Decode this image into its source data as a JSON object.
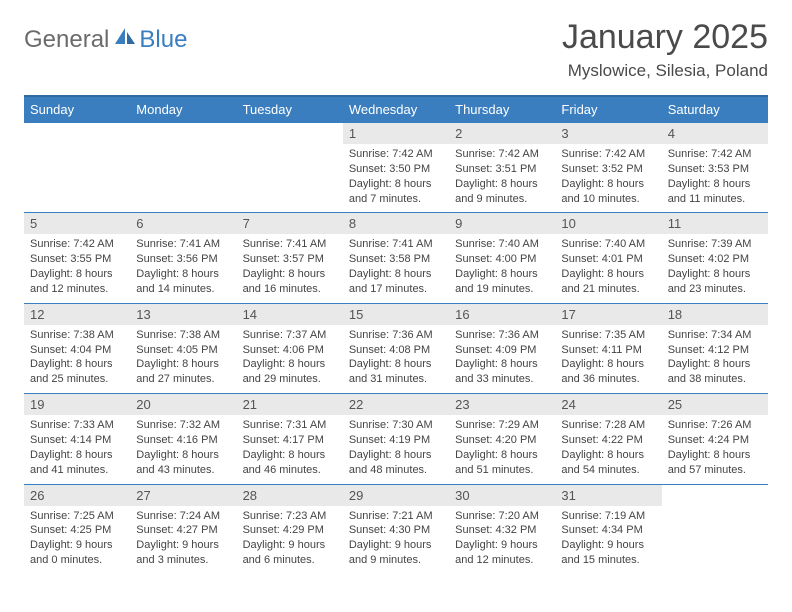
{
  "logo": {
    "general": "General",
    "blue": "Blue"
  },
  "title": "January 2025",
  "location": "Myslowice, Silesia, Poland",
  "colors": {
    "header_bg": "#3a7ebf",
    "header_border": "#2f6aa3",
    "daynum_bg": "#e9e9e9",
    "text": "#444444",
    "title_text": "#4a4a4a"
  },
  "weekdays": [
    "Sunday",
    "Monday",
    "Tuesday",
    "Wednesday",
    "Thursday",
    "Friday",
    "Saturday"
  ],
  "weeks": [
    [
      {
        "n": "",
        "sr": "",
        "ss": "",
        "dl": ""
      },
      {
        "n": "",
        "sr": "",
        "ss": "",
        "dl": ""
      },
      {
        "n": "",
        "sr": "",
        "ss": "",
        "dl": ""
      },
      {
        "n": "1",
        "sr": "Sunrise: 7:42 AM",
        "ss": "Sunset: 3:50 PM",
        "dl": "Daylight: 8 hours and 7 minutes."
      },
      {
        "n": "2",
        "sr": "Sunrise: 7:42 AM",
        "ss": "Sunset: 3:51 PM",
        "dl": "Daylight: 8 hours and 9 minutes."
      },
      {
        "n": "3",
        "sr": "Sunrise: 7:42 AM",
        "ss": "Sunset: 3:52 PM",
        "dl": "Daylight: 8 hours and 10 minutes."
      },
      {
        "n": "4",
        "sr": "Sunrise: 7:42 AM",
        "ss": "Sunset: 3:53 PM",
        "dl": "Daylight: 8 hours and 11 minutes."
      }
    ],
    [
      {
        "n": "5",
        "sr": "Sunrise: 7:42 AM",
        "ss": "Sunset: 3:55 PM",
        "dl": "Daylight: 8 hours and 12 minutes."
      },
      {
        "n": "6",
        "sr": "Sunrise: 7:41 AM",
        "ss": "Sunset: 3:56 PM",
        "dl": "Daylight: 8 hours and 14 minutes."
      },
      {
        "n": "7",
        "sr": "Sunrise: 7:41 AM",
        "ss": "Sunset: 3:57 PM",
        "dl": "Daylight: 8 hours and 16 minutes."
      },
      {
        "n": "8",
        "sr": "Sunrise: 7:41 AM",
        "ss": "Sunset: 3:58 PM",
        "dl": "Daylight: 8 hours and 17 minutes."
      },
      {
        "n": "9",
        "sr": "Sunrise: 7:40 AM",
        "ss": "Sunset: 4:00 PM",
        "dl": "Daylight: 8 hours and 19 minutes."
      },
      {
        "n": "10",
        "sr": "Sunrise: 7:40 AM",
        "ss": "Sunset: 4:01 PM",
        "dl": "Daylight: 8 hours and 21 minutes."
      },
      {
        "n": "11",
        "sr": "Sunrise: 7:39 AM",
        "ss": "Sunset: 4:02 PM",
        "dl": "Daylight: 8 hours and 23 minutes."
      }
    ],
    [
      {
        "n": "12",
        "sr": "Sunrise: 7:38 AM",
        "ss": "Sunset: 4:04 PM",
        "dl": "Daylight: 8 hours and 25 minutes."
      },
      {
        "n": "13",
        "sr": "Sunrise: 7:38 AM",
        "ss": "Sunset: 4:05 PM",
        "dl": "Daylight: 8 hours and 27 minutes."
      },
      {
        "n": "14",
        "sr": "Sunrise: 7:37 AM",
        "ss": "Sunset: 4:06 PM",
        "dl": "Daylight: 8 hours and 29 minutes."
      },
      {
        "n": "15",
        "sr": "Sunrise: 7:36 AM",
        "ss": "Sunset: 4:08 PM",
        "dl": "Daylight: 8 hours and 31 minutes."
      },
      {
        "n": "16",
        "sr": "Sunrise: 7:36 AM",
        "ss": "Sunset: 4:09 PM",
        "dl": "Daylight: 8 hours and 33 minutes."
      },
      {
        "n": "17",
        "sr": "Sunrise: 7:35 AM",
        "ss": "Sunset: 4:11 PM",
        "dl": "Daylight: 8 hours and 36 minutes."
      },
      {
        "n": "18",
        "sr": "Sunrise: 7:34 AM",
        "ss": "Sunset: 4:12 PM",
        "dl": "Daylight: 8 hours and 38 minutes."
      }
    ],
    [
      {
        "n": "19",
        "sr": "Sunrise: 7:33 AM",
        "ss": "Sunset: 4:14 PM",
        "dl": "Daylight: 8 hours and 41 minutes."
      },
      {
        "n": "20",
        "sr": "Sunrise: 7:32 AM",
        "ss": "Sunset: 4:16 PM",
        "dl": "Daylight: 8 hours and 43 minutes."
      },
      {
        "n": "21",
        "sr": "Sunrise: 7:31 AM",
        "ss": "Sunset: 4:17 PM",
        "dl": "Daylight: 8 hours and 46 minutes."
      },
      {
        "n": "22",
        "sr": "Sunrise: 7:30 AM",
        "ss": "Sunset: 4:19 PM",
        "dl": "Daylight: 8 hours and 48 minutes."
      },
      {
        "n": "23",
        "sr": "Sunrise: 7:29 AM",
        "ss": "Sunset: 4:20 PM",
        "dl": "Daylight: 8 hours and 51 minutes."
      },
      {
        "n": "24",
        "sr": "Sunrise: 7:28 AM",
        "ss": "Sunset: 4:22 PM",
        "dl": "Daylight: 8 hours and 54 minutes."
      },
      {
        "n": "25",
        "sr": "Sunrise: 7:26 AM",
        "ss": "Sunset: 4:24 PM",
        "dl": "Daylight: 8 hours and 57 minutes."
      }
    ],
    [
      {
        "n": "26",
        "sr": "Sunrise: 7:25 AM",
        "ss": "Sunset: 4:25 PM",
        "dl": "Daylight: 9 hours and 0 minutes."
      },
      {
        "n": "27",
        "sr": "Sunrise: 7:24 AM",
        "ss": "Sunset: 4:27 PM",
        "dl": "Daylight: 9 hours and 3 minutes."
      },
      {
        "n": "28",
        "sr": "Sunrise: 7:23 AM",
        "ss": "Sunset: 4:29 PM",
        "dl": "Daylight: 9 hours and 6 minutes."
      },
      {
        "n": "29",
        "sr": "Sunrise: 7:21 AM",
        "ss": "Sunset: 4:30 PM",
        "dl": "Daylight: 9 hours and 9 minutes."
      },
      {
        "n": "30",
        "sr": "Sunrise: 7:20 AM",
        "ss": "Sunset: 4:32 PM",
        "dl": "Daylight: 9 hours and 12 minutes."
      },
      {
        "n": "31",
        "sr": "Sunrise: 7:19 AM",
        "ss": "Sunset: 4:34 PM",
        "dl": "Daylight: 9 hours and 15 minutes."
      },
      {
        "n": "",
        "sr": "",
        "ss": "",
        "dl": ""
      }
    ]
  ]
}
